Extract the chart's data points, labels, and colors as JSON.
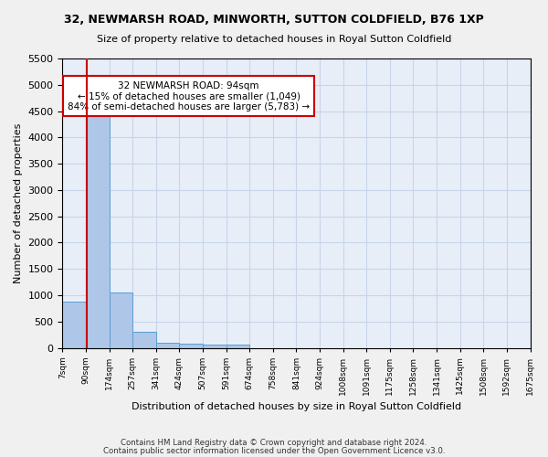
{
  "title1": "32, NEWMARSH ROAD, MINWORTH, SUTTON COLDFIELD, B76 1XP",
  "title2": "Size of property relative to detached houses in Royal Sutton Coldfield",
  "xlabel": "Distribution of detached houses by size in Royal Sutton Coldfield",
  "ylabel": "Number of detached properties",
  "footer1": "Contains HM Land Registry data © Crown copyright and database right 2024.",
  "footer2": "Contains public sector information licensed under the Open Government Licence v3.0.",
  "bin_edges": [
    "7sqm",
    "90sqm",
    "174sqm",
    "257sqm",
    "341sqm",
    "424sqm",
    "507sqm",
    "591sqm",
    "674sqm",
    "758sqm",
    "841sqm",
    "924sqm",
    "1008sqm",
    "1091sqm",
    "1175sqm",
    "1258sqm",
    "1341sqm",
    "1425sqm",
    "1508sqm",
    "1592sqm",
    "1675sqm"
  ],
  "bar_heights": [
    880,
    4560,
    1060,
    300,
    100,
    75,
    60,
    60,
    0,
    0,
    0,
    0,
    0,
    0,
    0,
    0,
    0,
    0,
    0,
    0
  ],
  "bar_color": "#aec6e8",
  "bar_edge_color": "#5a9fd4",
  "annotation_label": "32 NEWMARSH ROAD: 94sqm",
  "annotation_line1": "← 15% of detached houses are smaller (1,049)",
  "annotation_line2": "84% of semi-detached houses are larger (5,783) →",
  "red_line_color": "#cc0000",
  "annotation_box_color": "#ffffff",
  "annotation_box_edge": "#cc0000",
  "ylim": [
    0,
    5500
  ],
  "yticks": [
    0,
    500,
    1000,
    1500,
    2000,
    2500,
    3000,
    3500,
    4000,
    4500,
    5000,
    5500
  ],
  "grid_color": "#c8d4e8",
  "background_color": "#e8eef8",
  "fig_background": "#f0f0f0"
}
